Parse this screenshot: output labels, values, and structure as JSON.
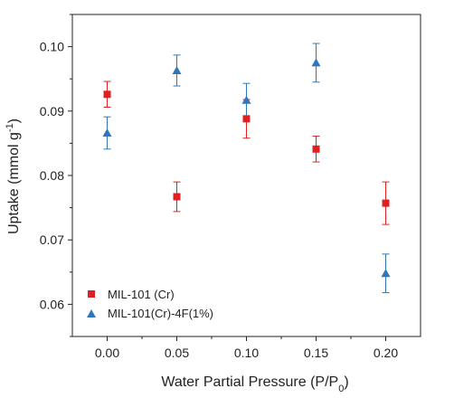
{
  "chart_data": {
    "type": "scatter",
    "xlabel_main": "Water Partial Pressure (P/P",
    "xlabel_sub": "0",
    "xlabel_end": ")",
    "ylabel_main": "Uptake (mmol g",
    "ylabel_sup": "-1",
    "ylabel_end": ")",
    "xlim": [
      -0.025,
      0.225
    ],
    "ylim": [
      0.055,
      0.105
    ],
    "x_ticks": [
      0.0,
      0.05,
      0.1,
      0.15,
      0.2
    ],
    "x_tick_labels": [
      "0.00",
      "0.05",
      "0.10",
      "0.15",
      "0.20"
    ],
    "y_ticks": [
      0.06,
      0.07,
      0.08,
      0.09,
      0.1
    ],
    "y_tick_labels": [
      "0.06",
      "0.07",
      "0.08",
      "0.09",
      "0.10"
    ],
    "legend_position": "bottom-left",
    "grid": false,
    "series": [
      {
        "name": "MIL-101 (Cr)",
        "marker": "square",
        "color": "#e02020",
        "x": [
          0.0,
          0.05,
          0.1,
          0.15,
          0.2
        ],
        "y": [
          0.0926,
          0.0767,
          0.0888,
          0.0841,
          0.0757
        ],
        "err": [
          0.002,
          0.0023,
          0.003,
          0.002,
          0.0033
        ]
      },
      {
        "name": "MIL-101(Cr)-4F(1%)",
        "marker": "triangle",
        "color": "#2f77b8",
        "x": [
          0.0,
          0.05,
          0.1,
          0.15,
          0.2
        ],
        "y": [
          0.0866,
          0.0963,
          0.0917,
          0.0975,
          0.0648
        ],
        "err": [
          0.0025,
          0.0024,
          0.0026,
          0.003,
          0.003
        ]
      }
    ]
  }
}
